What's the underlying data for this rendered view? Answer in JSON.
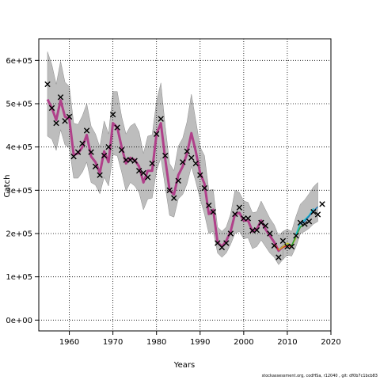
{
  "chart_data": {
    "type": "line",
    "title": "",
    "xlabel": "Years",
    "ylabel": "Catch",
    "xlim": [
      1953,
      2020
    ],
    "ylim": [
      -25000,
      650000
    ],
    "x_ticks": [
      1960,
      1970,
      1980,
      1990,
      2000,
      2010,
      2020
    ],
    "y_ticks": [
      0,
      100000,
      200000,
      300000,
      400000,
      500000,
      600000
    ],
    "y_tick_labels": [
      "0e+00",
      "1e+05",
      "2e+05",
      "3e+05",
      "4e+05",
      "5e+05",
      "6e+05"
    ],
    "grid": true,
    "colors": {
      "ci_band": "#bdbdbd",
      "ci_edge": "#8c8c8c",
      "fit_main": "#b0408a",
      "fit_red": "#d62728",
      "fit_olive": "#bcbd22",
      "fit_green": "#2ca02c",
      "fit_cyan": "#17becf",
      "fit_blue": "#1f77b4",
      "observed": "#000000"
    },
    "observed": {
      "x": [
        1955,
        1956,
        1957,
        1958,
        1959,
        1960,
        1961,
        1962,
        1963,
        1964,
        1965,
        1966,
        1967,
        1968,
        1969,
        1970,
        1971,
        1972,
        1973,
        1974,
        1975,
        1976,
        1977,
        1978,
        1979,
        1980,
        1981,
        1982,
        1983,
        1984,
        1985,
        1986,
        1987,
        1988,
        1989,
        1990,
        1991,
        1992,
        1993,
        1994,
        1995,
        1996,
        1997,
        1998,
        1999,
        2000,
        2001,
        2002,
        2003,
        2004,
        2005,
        2006,
        2007,
        2008,
        2009,
        2010,
        2011,
        2012,
        2013,
        2014,
        2015,
        2016,
        2017,
        2018
      ],
      "y": [
        545000,
        490000,
        455000,
        515000,
        460000,
        470000,
        378000,
        388000,
        408000,
        438000,
        388000,
        355000,
        335000,
        380000,
        400000,
        475000,
        445000,
        393000,
        370000,
        370000,
        368000,
        345000,
        340000,
        330000,
        362000,
        430000,
        465000,
        380000,
        300000,
        282000,
        322000,
        365000,
        390000,
        375000,
        362000,
        335000,
        305000,
        265000,
        250000,
        178000,
        168000,
        178000,
        200000,
        245000,
        260000,
        235000,
        235000,
        207000,
        208000,
        225000,
        218000,
        200000,
        172000,
        145000,
        183000,
        170000,
        170000,
        195000,
        225000,
        222000,
        228000,
        250000,
        244000,
        268000
      ]
    },
    "fit": {
      "x": [
        1955,
        1956,
        1957,
        1958,
        1959,
        1960,
        1961,
        1962,
        1963,
        1964,
        1965,
        1966,
        1967,
        1968,
        1969,
        1970,
        1971,
        1972,
        1973,
        1974,
        1975,
        1976,
        1977,
        1978,
        1979,
        1980,
        1981,
        1982,
        1983,
        1984,
        1985,
        1986,
        1987,
        1988,
        1989,
        1990,
        1991,
        1992,
        1993,
        1994,
        1995,
        1996,
        1997,
        1998,
        1999,
        2000,
        2001,
        2002,
        2003,
        2004,
        2005,
        2006,
        2007,
        2008,
        2009
      ],
      "y": [
        510000,
        490000,
        462000,
        508000,
        470000,
        465000,
        382000,
        385000,
        400000,
        428000,
        378000,
        365000,
        340000,
        390000,
        365000,
        455000,
        445000,
        400000,
        362000,
        375000,
        370000,
        355000,
        318000,
        345000,
        345000,
        430000,
        455000,
        372000,
        300000,
        290000,
        335000,
        355000,
        385000,
        432000,
        390000,
        340000,
        315000,
        245000,
        255000,
        180000,
        170000,
        183000,
        205000,
        245000,
        248000,
        230000,
        230000,
        205000,
        210000,
        230000,
        210000,
        195000,
        180000,
        160000,
        170000
      ]
    },
    "ci_lower": [
      425000,
      418000,
      392000,
      440000,
      405000,
      398000,
      328000,
      328000,
      342000,
      365000,
      318000,
      312000,
      292000,
      330000,
      310000,
      382000,
      380000,
      342000,
      298000,
      318000,
      310000,
      295000,
      255000,
      280000,
      282000,
      345000,
      375000,
      308000,
      242000,
      238000,
      280000,
      290000,
      315000,
      355000,
      320000,
      280000,
      245000,
      200000,
      205000,
      155000,
      145000,
      155000,
      175000,
      200000,
      205000,
      188000,
      190000,
      165000,
      170000,
      185000,
      170000,
      155000,
      145000,
      128000,
      140000
    ],
    "ci_upper": [
      620000,
      590000,
      545000,
      598000,
      550000,
      540000,
      455000,
      452000,
      472000,
      500000,
      448000,
      430000,
      400000,
      460000,
      430000,
      528000,
      528000,
      470000,
      430000,
      448000,
      455000,
      435000,
      385000,
      425000,
      428000,
      505000,
      548000,
      448000,
      362000,
      345000,
      402000,
      420000,
      458000,
      522000,
      462000,
      400000,
      380000,
      300000,
      302000,
      215000,
      205000,
      215000,
      245000,
      300000,
      295000,
      275000,
      272000,
      248000,
      250000,
      275000,
      255000,
      235000,
      220000,
      195000,
      205000
    ],
    "recent_ci": {
      "x": [
        2009,
        2010,
        2011,
        2012,
        2013,
        2014,
        2015,
        2016,
        2017
      ],
      "lower": [
        140000,
        150000,
        148000,
        170000,
        200000,
        205000,
        212000,
        222000,
        228000
      ],
      "upper": [
        205000,
        210000,
        205000,
        240000,
        268000,
        278000,
        292000,
        308000,
        318000
      ]
    },
    "recent_fits": [
      {
        "color_key": "fit_red",
        "x": [
          2007,
          2008,
          2009,
          2010,
          2011
        ],
        "y": [
          175000,
          162000,
          168000,
          172000,
          170000
        ]
      },
      {
        "color_key": "fit_olive",
        "x": [
          2008,
          2009,
          2010,
          2011,
          2012
        ],
        "y": [
          162000,
          170000,
          178000,
          172000,
          190000
        ]
      },
      {
        "color_key": "fit_green",
        "x": [
          2010,
          2011,
          2012,
          2013,
          2014
        ],
        "y": [
          175000,
          172000,
          195000,
          215000,
          222000
        ]
      },
      {
        "color_key": "fit_cyan",
        "x": [
          2012,
          2013,
          2014,
          2015,
          2016
        ],
        "y": [
          198000,
          225000,
          232000,
          242000,
          258000
        ]
      },
      {
        "color_key": "fit_blue",
        "x": [
          2013,
          2014,
          2015,
          2016,
          2017
        ],
        "y": [
          222000,
          228000,
          240000,
          252000,
          262000
        ]
      }
    ]
  },
  "footer": "stockassessment.org, codHSa, r12040 , git: df0b7c1bcb83"
}
